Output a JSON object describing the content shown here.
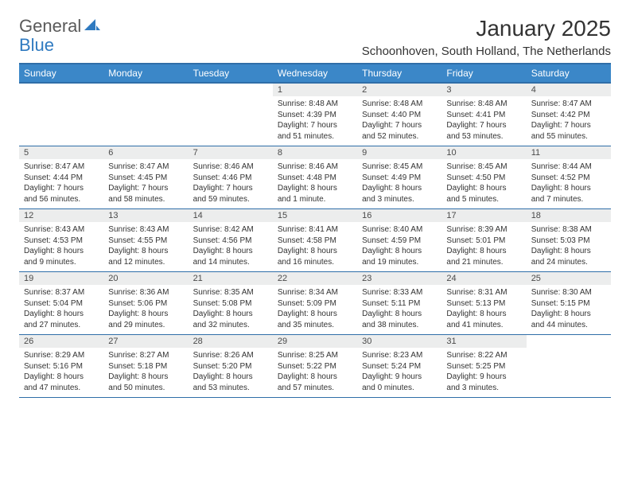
{
  "logo": {
    "t1": "General",
    "t2": "Blue"
  },
  "title": "January 2025",
  "location": "Schoonhoven, South Holland, The Netherlands",
  "colors": {
    "header_bg": "#3b87c8",
    "header_border": "#2f6ea8",
    "daynum_bg": "#eceded",
    "logo_blue": "#2f7ac0",
    "logo_gray": "#5a5a5a"
  },
  "weekdays": [
    "Sunday",
    "Monday",
    "Tuesday",
    "Wednesday",
    "Thursday",
    "Friday",
    "Saturday"
  ],
  "rows": [
    [
      {
        "n": "",
        "txt": ""
      },
      {
        "n": "",
        "txt": ""
      },
      {
        "n": "",
        "txt": ""
      },
      {
        "n": "1",
        "txt": "Sunrise: 8:48 AM\nSunset: 4:39 PM\nDaylight: 7 hours and 51 minutes."
      },
      {
        "n": "2",
        "txt": "Sunrise: 8:48 AM\nSunset: 4:40 PM\nDaylight: 7 hours and 52 minutes."
      },
      {
        "n": "3",
        "txt": "Sunrise: 8:48 AM\nSunset: 4:41 PM\nDaylight: 7 hours and 53 minutes."
      },
      {
        "n": "4",
        "txt": "Sunrise: 8:47 AM\nSunset: 4:42 PM\nDaylight: 7 hours and 55 minutes."
      }
    ],
    [
      {
        "n": "5",
        "txt": "Sunrise: 8:47 AM\nSunset: 4:44 PM\nDaylight: 7 hours and 56 minutes."
      },
      {
        "n": "6",
        "txt": "Sunrise: 8:47 AM\nSunset: 4:45 PM\nDaylight: 7 hours and 58 minutes."
      },
      {
        "n": "7",
        "txt": "Sunrise: 8:46 AM\nSunset: 4:46 PM\nDaylight: 7 hours and 59 minutes."
      },
      {
        "n": "8",
        "txt": "Sunrise: 8:46 AM\nSunset: 4:48 PM\nDaylight: 8 hours and 1 minute."
      },
      {
        "n": "9",
        "txt": "Sunrise: 8:45 AM\nSunset: 4:49 PM\nDaylight: 8 hours and 3 minutes."
      },
      {
        "n": "10",
        "txt": "Sunrise: 8:45 AM\nSunset: 4:50 PM\nDaylight: 8 hours and 5 minutes."
      },
      {
        "n": "11",
        "txt": "Sunrise: 8:44 AM\nSunset: 4:52 PM\nDaylight: 8 hours and 7 minutes."
      }
    ],
    [
      {
        "n": "12",
        "txt": "Sunrise: 8:43 AM\nSunset: 4:53 PM\nDaylight: 8 hours and 9 minutes."
      },
      {
        "n": "13",
        "txt": "Sunrise: 8:43 AM\nSunset: 4:55 PM\nDaylight: 8 hours and 12 minutes."
      },
      {
        "n": "14",
        "txt": "Sunrise: 8:42 AM\nSunset: 4:56 PM\nDaylight: 8 hours and 14 minutes."
      },
      {
        "n": "15",
        "txt": "Sunrise: 8:41 AM\nSunset: 4:58 PM\nDaylight: 8 hours and 16 minutes."
      },
      {
        "n": "16",
        "txt": "Sunrise: 8:40 AM\nSunset: 4:59 PM\nDaylight: 8 hours and 19 minutes."
      },
      {
        "n": "17",
        "txt": "Sunrise: 8:39 AM\nSunset: 5:01 PM\nDaylight: 8 hours and 21 minutes."
      },
      {
        "n": "18",
        "txt": "Sunrise: 8:38 AM\nSunset: 5:03 PM\nDaylight: 8 hours and 24 minutes."
      }
    ],
    [
      {
        "n": "19",
        "txt": "Sunrise: 8:37 AM\nSunset: 5:04 PM\nDaylight: 8 hours and 27 minutes."
      },
      {
        "n": "20",
        "txt": "Sunrise: 8:36 AM\nSunset: 5:06 PM\nDaylight: 8 hours and 29 minutes."
      },
      {
        "n": "21",
        "txt": "Sunrise: 8:35 AM\nSunset: 5:08 PM\nDaylight: 8 hours and 32 minutes."
      },
      {
        "n": "22",
        "txt": "Sunrise: 8:34 AM\nSunset: 5:09 PM\nDaylight: 8 hours and 35 minutes."
      },
      {
        "n": "23",
        "txt": "Sunrise: 8:33 AM\nSunset: 5:11 PM\nDaylight: 8 hours and 38 minutes."
      },
      {
        "n": "24",
        "txt": "Sunrise: 8:31 AM\nSunset: 5:13 PM\nDaylight: 8 hours and 41 minutes."
      },
      {
        "n": "25",
        "txt": "Sunrise: 8:30 AM\nSunset: 5:15 PM\nDaylight: 8 hours and 44 minutes."
      }
    ],
    [
      {
        "n": "26",
        "txt": "Sunrise: 8:29 AM\nSunset: 5:16 PM\nDaylight: 8 hours and 47 minutes."
      },
      {
        "n": "27",
        "txt": "Sunrise: 8:27 AM\nSunset: 5:18 PM\nDaylight: 8 hours and 50 minutes."
      },
      {
        "n": "28",
        "txt": "Sunrise: 8:26 AM\nSunset: 5:20 PM\nDaylight: 8 hours and 53 minutes."
      },
      {
        "n": "29",
        "txt": "Sunrise: 8:25 AM\nSunset: 5:22 PM\nDaylight: 8 hours and 57 minutes."
      },
      {
        "n": "30",
        "txt": "Sunrise: 8:23 AM\nSunset: 5:24 PM\nDaylight: 9 hours and 0 minutes."
      },
      {
        "n": "31",
        "txt": "Sunrise: 8:22 AM\nSunset: 5:25 PM\nDaylight: 9 hours and 3 minutes."
      },
      {
        "n": "",
        "txt": ""
      }
    ]
  ]
}
